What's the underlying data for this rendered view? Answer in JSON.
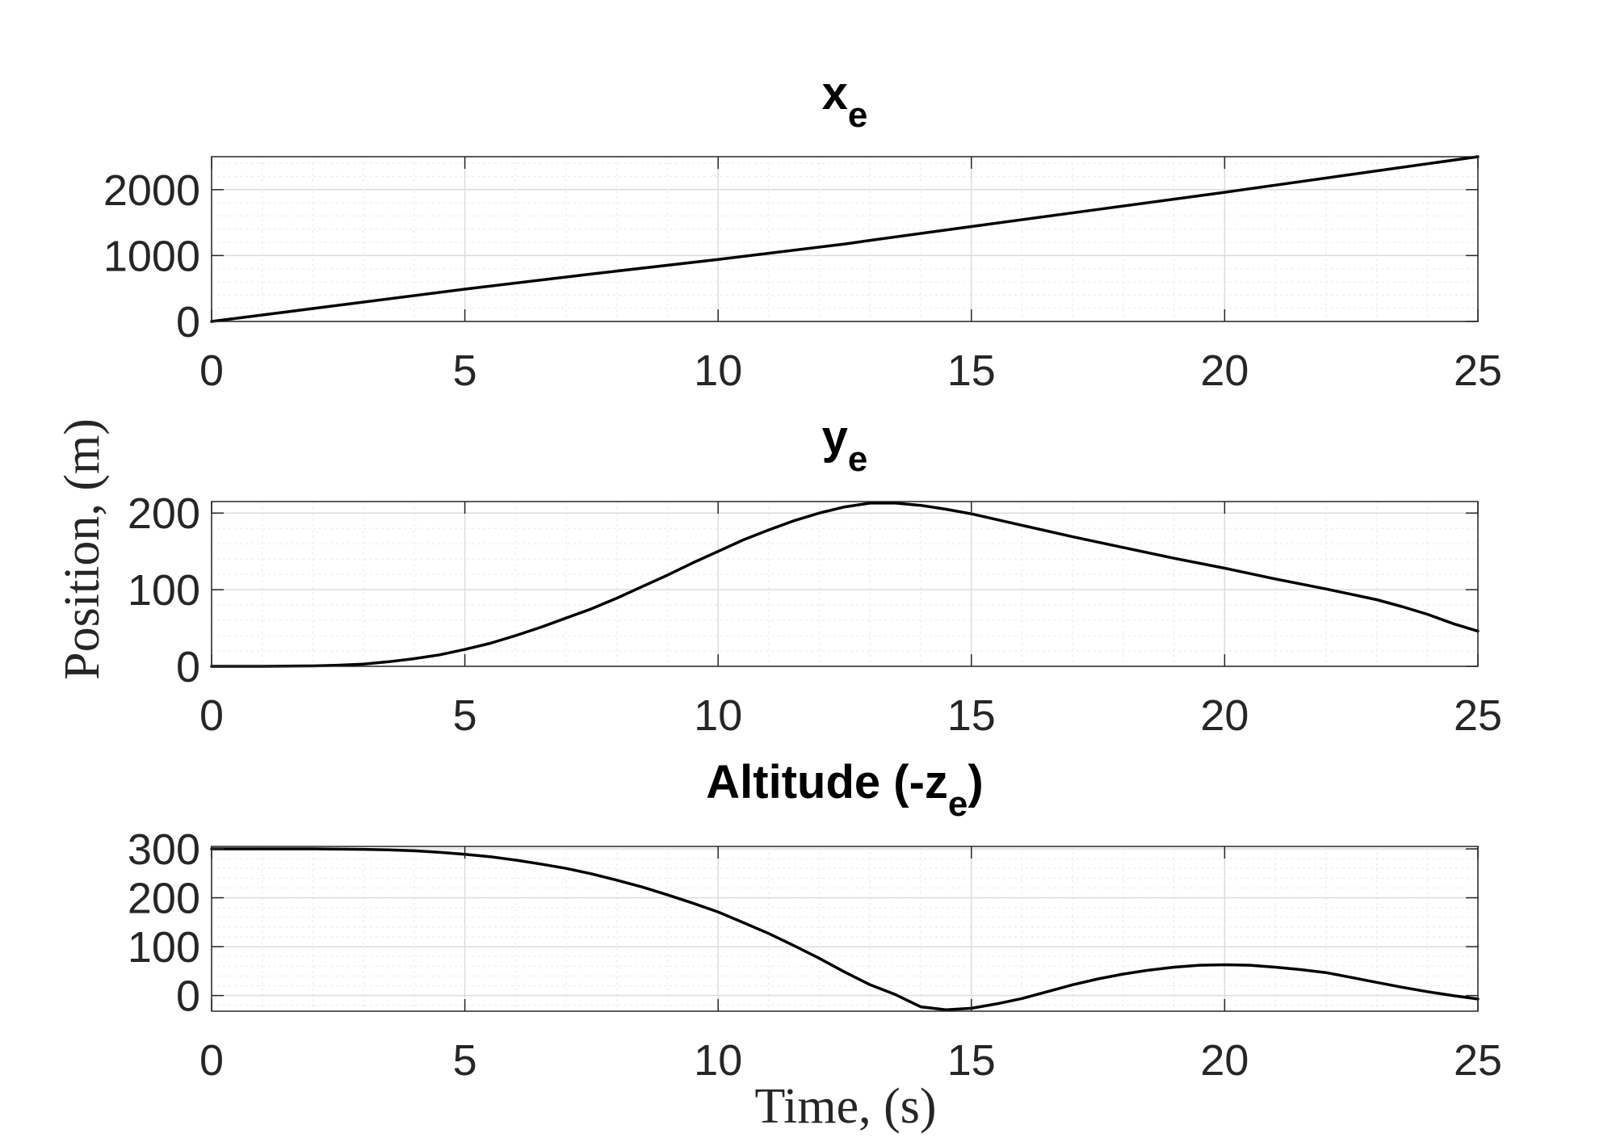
{
  "figure": {
    "ylabel": "Position, (m)",
    "xlabel": "Time, (s)"
  },
  "chart_data": [
    {
      "type": "line",
      "title": "x",
      "title_subscript": "e",
      "xlim": [
        0,
        25
      ],
      "ylim": [
        0,
        2500
      ],
      "xticks": [
        0,
        5,
        10,
        15,
        20,
        25
      ],
      "yticks": [
        0,
        1000,
        2000
      ],
      "grid": true,
      "minor_grid": true,
      "series": [
        {
          "color": "#000000",
          "x": [
            0,
            2.5,
            5,
            7.5,
            10,
            12.5,
            13,
            15,
            17.5,
            20,
            22.5,
            25
          ],
          "y": [
            0,
            245,
            490,
            720,
            940,
            1175,
            1230,
            1440,
            1700,
            1960,
            2230,
            2500
          ]
        }
      ]
    },
    {
      "type": "line",
      "title": "y",
      "title_subscript": "e",
      "xlim": [
        0,
        25
      ],
      "ylim": [
        0,
        215
      ],
      "xticks": [
        0,
        5,
        10,
        15,
        20,
        25
      ],
      "yticks": [
        0,
        100,
        200
      ],
      "grid": true,
      "minor_grid": true,
      "series": [
        {
          "color": "#000000",
          "x": [
            0,
            1,
            2,
            2.5,
            3,
            3.5,
            4,
            4.5,
            5,
            5.5,
            6,
            6.5,
            7,
            7.5,
            8,
            8.5,
            9,
            9.5,
            10,
            10.5,
            11,
            11.5,
            12,
            12.5,
            13,
            13.5,
            14,
            14.5,
            15,
            16,
            17,
            18,
            19,
            20,
            21,
            22,
            22.5,
            23,
            23.5,
            24,
            24.5,
            25
          ],
          "y": [
            0,
            0,
            0.5,
            1.5,
            3,
            6,
            10,
            15,
            22,
            30,
            40,
            51,
            63,
            75,
            89,
            104,
            119,
            135,
            150,
            165,
            178,
            190,
            200,
            208,
            213,
            213,
            210,
            205,
            199,
            184,
            169,
            155,
            141,
            128,
            114,
            101,
            94,
            87,
            78,
            68,
            56,
            46
          ]
        }
      ]
    },
    {
      "type": "line",
      "title": "Altitude (-z",
      "title_subscript": "e",
      "title_suffix": ")",
      "xlim": [
        0,
        25
      ],
      "ylim": [
        -32,
        305
      ],
      "xticks": [
        0,
        5,
        10,
        15,
        20,
        25
      ],
      "yticks": [
        0,
        100,
        200,
        300
      ],
      "grid": true,
      "minor_grid": true,
      "series": [
        {
          "color": "#000000",
          "x": [
            0,
            1,
            2,
            3,
            3.5,
            4,
            4.5,
            5,
            5.5,
            6,
            6.5,
            7,
            7.5,
            8,
            8.5,
            9,
            9.5,
            10,
            10.5,
            11,
            11.5,
            12,
            12.5,
            13,
            13.5,
            14,
            14.5,
            15,
            15.5,
            16,
            16.5,
            17,
            17.5,
            18,
            18.5,
            19,
            19.5,
            20,
            20.5,
            21,
            21.5,
            22,
            22.5,
            23,
            23.5,
            24,
            24.5,
            25
          ],
          "y": [
            300,
            300,
            300,
            299,
            298,
            296,
            293,
            289,
            284,
            277,
            269,
            260,
            249,
            236,
            222,
            206,
            189,
            171,
            149,
            127,
            102,
            76,
            48,
            22,
            2,
            -23,
            -29,
            -26,
            -17,
            -6,
            8,
            22,
            34,
            44,
            52,
            58,
            62,
            63,
            62,
            58,
            53,
            47,
            37,
            27,
            17,
            8,
            0,
            -7
          ]
        }
      ]
    }
  ]
}
